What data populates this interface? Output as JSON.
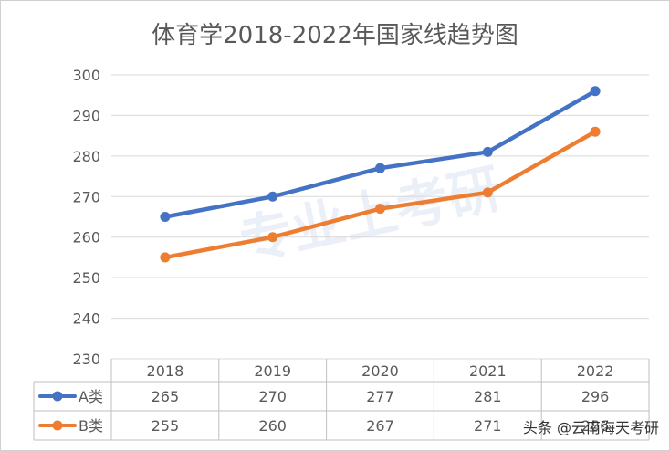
{
  "chart_data": {
    "type": "line",
    "title": "体育学2018-2022年国家线趋势图",
    "categories": [
      "2018",
      "2019",
      "2020",
      "2021",
      "2022"
    ],
    "yticks": [
      "300",
      "290",
      "280",
      "270",
      "260",
      "250",
      "240",
      "230"
    ],
    "ylim": [
      230,
      300
    ],
    "grid": true,
    "legend": "data-table",
    "data_table": true,
    "series": [
      {
        "name": "A类",
        "color": "#4472c4",
        "values": [
          265,
          270,
          277,
          281,
          296
        ]
      },
      {
        "name": "B类",
        "color": "#ed7d31",
        "values": [
          255,
          260,
          267,
          271,
          286
        ]
      }
    ]
  },
  "watermark": {
    "logo_text": "专业上考研",
    "caption": "头条 @云南海天考研"
  }
}
